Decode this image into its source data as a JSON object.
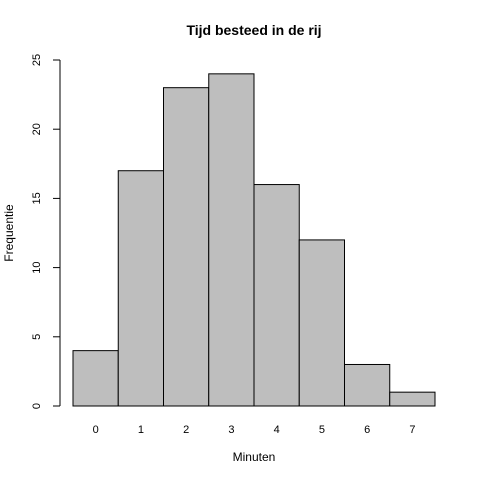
{
  "chart_data": {
    "type": "bar",
    "title": "Tijd besteed in de rij",
    "xlabel": "Minuten",
    "ylabel": "Frequentie",
    "categories": [
      "0",
      "1",
      "2",
      "3",
      "4",
      "5",
      "6",
      "7"
    ],
    "values": [
      4,
      17,
      23,
      24,
      16,
      12,
      3,
      1
    ],
    "ylim": [
      0,
      25
    ],
    "yticks": [
      0,
      5,
      10,
      15,
      20,
      25
    ],
    "bar_color": "#bebebe",
    "edge_color": "#000000",
    "grid": false,
    "legend": "none"
  }
}
